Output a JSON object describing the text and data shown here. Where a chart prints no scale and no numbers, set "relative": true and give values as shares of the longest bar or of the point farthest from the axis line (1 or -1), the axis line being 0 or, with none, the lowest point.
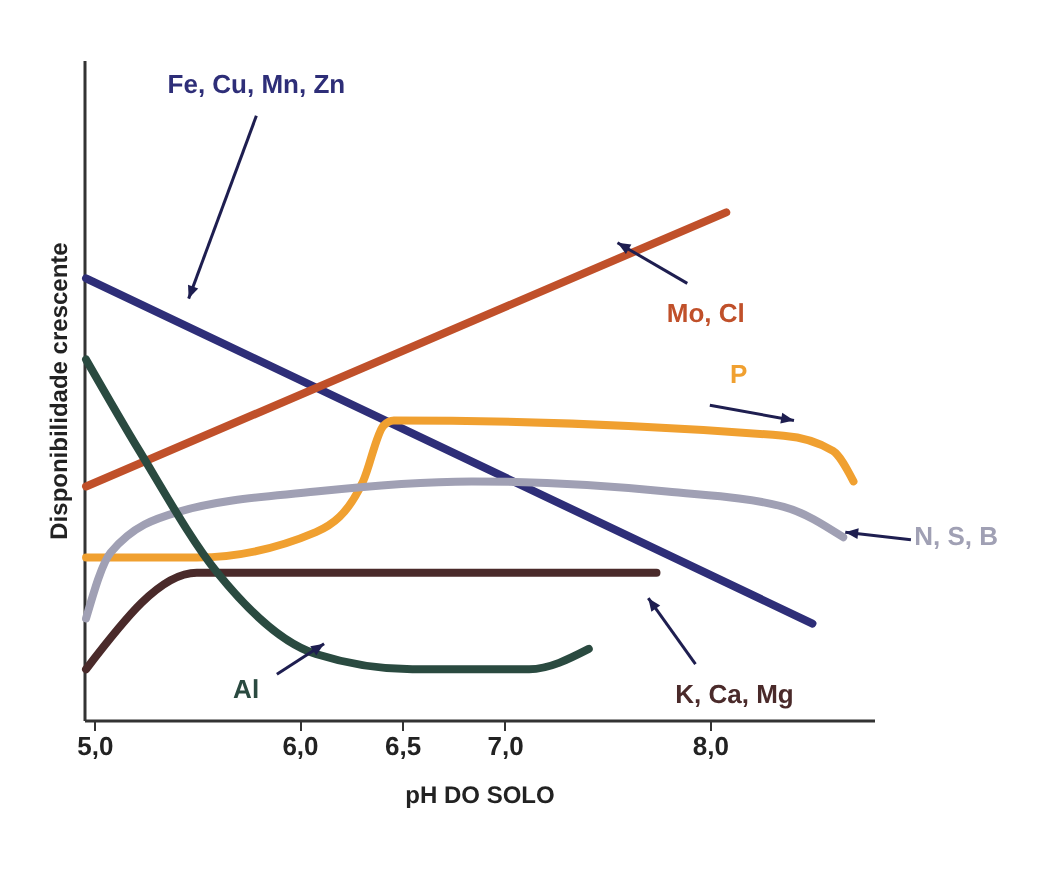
{
  "chart_data": {
    "type": "line",
    "relative": true,
    "xlabel": "pH DO SOLO",
    "ylabel": "Disponibilidade crescente",
    "xlim": [
      4.95,
      8.8
    ],
    "xticks": [
      {
        "value": 5,
        "label": "5,0"
      },
      {
        "value": 6,
        "label": "6,0"
      },
      {
        "value": 6.5,
        "label": "6,5"
      },
      {
        "value": 7,
        "label": "7,0"
      },
      {
        "value": 8,
        "label": "8,0"
      }
    ],
    "series": [
      {
        "name": "Fe, Cu, Mn, Zn",
        "color": "#2e2e78",
        "x": [
          4.96,
          8.5
        ],
        "values": [
          0.87,
          0.19
        ]
      },
      {
        "name": "Mo, Cl",
        "color": "#c0502a",
        "x": [
          4.96,
          8.08
        ],
        "values": [
          0.46,
          1.0
        ]
      },
      {
        "name": "P",
        "color": "#f0a030",
        "x": [
          4.96,
          5.5,
          6.08,
          6.31,
          6.41,
          6.46,
          8.36,
          8.6,
          8.7
        ],
        "values": [
          0.32,
          0.32,
          0.37,
          0.47,
          0.58,
          0.59,
          0.56,
          0.53,
          0.47
        ]
      },
      {
        "name": "N, S, B",
        "color": "#a0a0b4",
        "x": [
          4.96,
          5.08,
          5.41,
          6.08,
          6.84,
          7.79,
          8.36,
          8.65
        ],
        "values": [
          0.2,
          0.33,
          0.41,
          0.45,
          0.47,
          0.45,
          0.42,
          0.36
        ]
      },
      {
        "name": "K, Ca, Mg",
        "color": "#4a2a2a",
        "x": [
          4.96,
          5.5,
          7.74
        ],
        "values": [
          0.1,
          0.29,
          0.29
        ]
      },
      {
        "name": "Al",
        "color": "#2a4a40",
        "x": [
          4.96,
          5.22,
          5.6,
          6.08,
          6.55,
          7.12,
          7.41
        ],
        "values": [
          0.71,
          0.53,
          0.29,
          0.13,
          0.1,
          0.1,
          0.14
        ]
      }
    ]
  }
}
